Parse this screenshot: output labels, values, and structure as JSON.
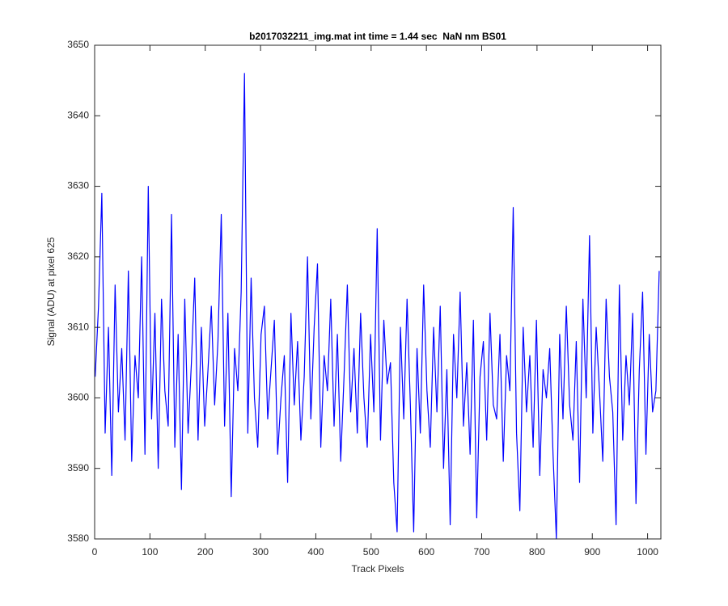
{
  "chart_data": {
    "type": "line",
    "title": "b2017032211_img.mat int time = 1.44 sec  NaN nm BS01",
    "xlabel": "Track Pixels",
    "ylabel": "Signal (ADU) at pixel 625",
    "xlim": [
      0,
      1024
    ],
    "ylim": [
      3580,
      3650
    ],
    "xticks": [
      0,
      100,
      200,
      300,
      400,
      500,
      600,
      700,
      800,
      900,
      1000
    ],
    "yticks": [
      3580,
      3590,
      3600,
      3610,
      3620,
      3630,
      3640,
      3650
    ],
    "grid": false,
    "x": [
      1,
      7,
      13,
      19,
      25,
      31,
      37,
      43,
      49,
      55,
      61,
      67,
      73,
      79,
      85,
      91,
      97,
      103,
      109,
      115,
      121,
      127,
      133,
      139,
      145,
      151,
      157,
      163,
      169,
      175,
      181,
      187,
      193,
      199,
      205,
      211,
      217,
      223,
      229,
      235,
      241,
      247,
      253,
      259,
      265,
      271,
      277,
      283,
      289,
      295,
      301,
      307,
      313,
      319,
      325,
      331,
      337,
      343,
      349,
      355,
      361,
      367,
      373,
      379,
      385,
      391,
      397,
      403,
      409,
      415,
      421,
      427,
      433,
      439,
      445,
      451,
      457,
      463,
      469,
      475,
      481,
      487,
      493,
      499,
      505,
      511,
      517,
      523,
      529,
      535,
      541,
      547,
      553,
      559,
      565,
      571,
      577,
      583,
      589,
      595,
      601,
      607,
      613,
      619,
      625,
      631,
      637,
      643,
      649,
      655,
      661,
      667,
      673,
      679,
      685,
      691,
      697,
      703,
      709,
      715,
      721,
      727,
      733,
      739,
      745,
      751,
      757,
      763,
      769,
      775,
      781,
      787,
      793,
      799,
      805,
      811,
      817,
      823,
      829,
      835,
      841,
      847,
      853,
      859,
      865,
      871,
      877,
      883,
      889,
      895,
      901,
      907,
      913,
      919,
      925,
      931,
      937,
      943,
      949,
      955,
      961,
      967,
      973,
      979,
      985,
      991,
      997,
      1003,
      1009,
      1015,
      1021
    ],
    "series": [
      {
        "color": "#0000ff",
        "values": [
          3603,
          3613,
          3629,
          3595,
          3610,
          3589,
          3616,
          3598,
          3607,
          3594,
          3618,
          3591,
          3606,
          3600,
          3620,
          3592,
          3630,
          3597,
          3612,
          3590,
          3614,
          3601,
          3596,
          3626,
          3593,
          3609,
          3587,
          3614,
          3595,
          3605,
          3617,
          3594,
          3610,
          3596,
          3604,
          3613,
          3599,
          3608,
          3626,
          3596,
          3612,
          3586,
          3607,
          3601,
          3615,
          3646,
          3595,
          3617,
          3600,
          3593,
          3609,
          3613,
          3597,
          3604,
          3611,
          3592,
          3600,
          3606,
          3588,
          3612,
          3599,
          3608,
          3594,
          3603,
          3620,
          3597,
          3610,
          3619,
          3593,
          3606,
          3601,
          3614,
          3596,
          3609,
          3591,
          3603,
          3616,
          3598,
          3607,
          3595,
          3612,
          3600,
          3593,
          3609,
          3598,
          3624,
          3594,
          3611,
          3602,
          3605,
          3588,
          3581,
          3610,
          3597,
          3614,
          3599,
          3581,
          3607,
          3595,
          3616,
          3601,
          3593,
          3610,
          3598,
          3613,
          3590,
          3604,
          3582,
          3609,
          3600,
          3615,
          3596,
          3605,
          3592,
          3611,
          3583,
          3603,
          3608,
          3594,
          3612,
          3599,
          3597,
          3609,
          3591,
          3606,
          3601,
          3627,
          3595,
          3584,
          3610,
          3598,
          3606,
          3593,
          3611,
          3589,
          3604,
          3600,
          3607,
          3592,
          3580,
          3609,
          3597,
          3613,
          3599,
          3594,
          3608,
          3588,
          3614,
          3600,
          3623,
          3595,
          3610,
          3601,
          3591,
          3614,
          3603,
          3598,
          3582,
          3616,
          3594,
          3606,
          3599,
          3612,
          3585,
          3604,
          3615,
          3592,
          3609,
          3598,
          3601,
          3618
        ]
      }
    ]
  }
}
